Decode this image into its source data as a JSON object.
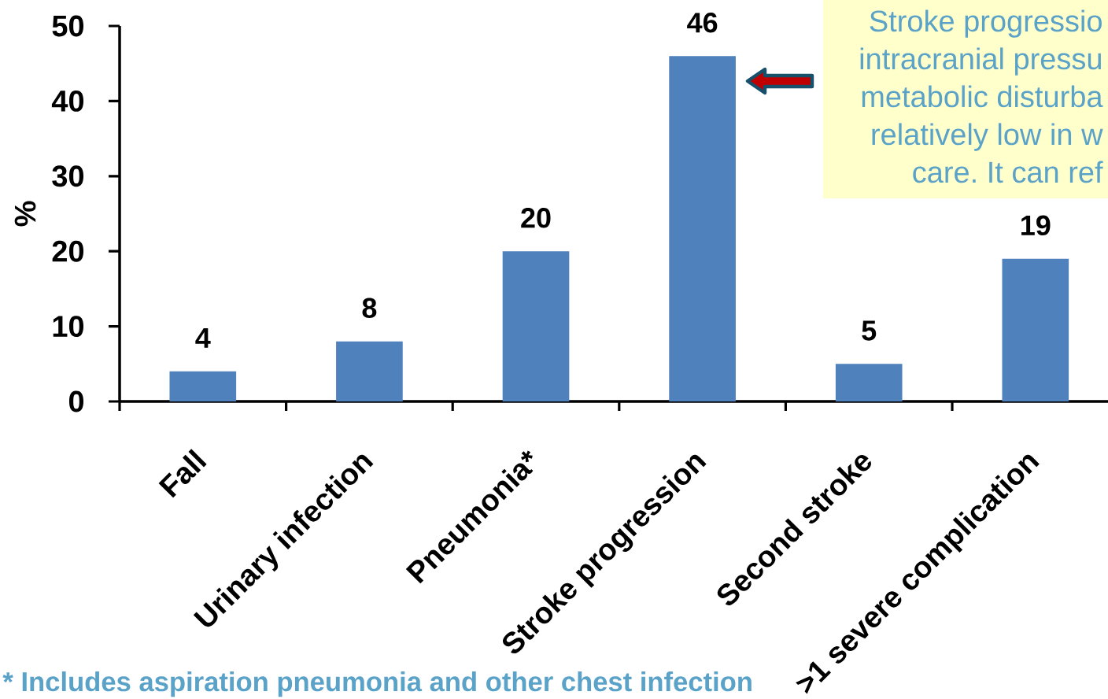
{
  "chart_data": {
    "type": "bar",
    "ylabel": "%",
    "categories": [
      "Fall",
      "Urinary infection",
      "Pneumonia*",
      "Stroke progression",
      "Second stroke",
      ">1 severe complication"
    ],
    "values": [
      4,
      8,
      20,
      46,
      5,
      19
    ],
    "color": "#4f81bd",
    "data_labels": true,
    "ylim": [
      0,
      50
    ],
    "yticks": [
      0,
      10,
      20,
      30,
      40,
      50
    ],
    "annotations": [
      "Stroke progressio intracranial pressu metabolic disturba relatively low in w care. It can ref",
      "* Includes aspiration pneumonia and other chest infection"
    ]
  }
}
